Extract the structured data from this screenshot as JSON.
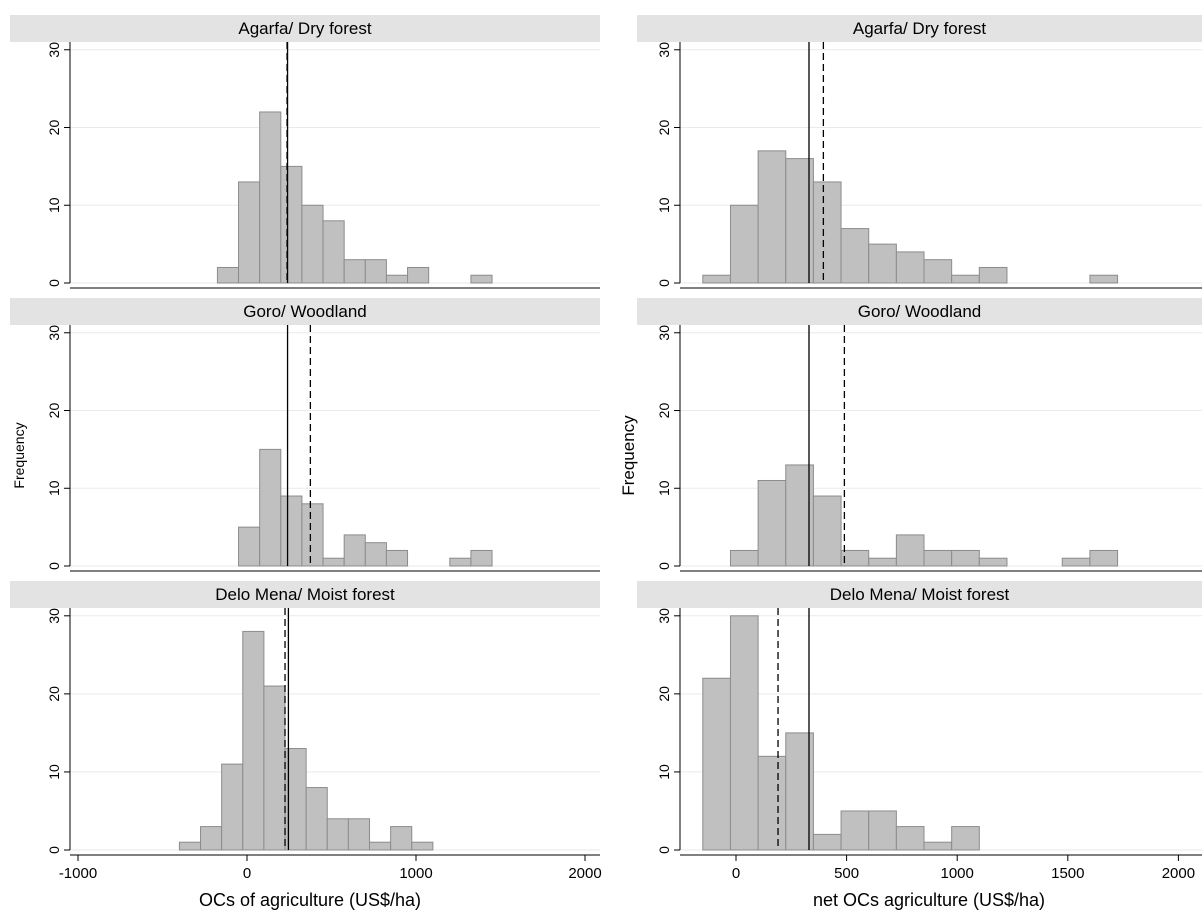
{
  "chart_data": [
    {
      "type": "bar",
      "panel": "Agarfa/ Dry forest",
      "xlabel": "",
      "ylabel": "",
      "yticks": [
        0,
        10,
        20,
        30
      ],
      "ylim": [
        0,
        31
      ],
      "xlim": [
        -1000,
        2000
      ],
      "bin_width": 125,
      "bins": [
        {
          "x0": -175,
          "x1": -50,
          "value": 2
        },
        {
          "x0": -50,
          "x1": 75,
          "value": 13
        },
        {
          "x0": 75,
          "x1": 200,
          "value": 22
        },
        {
          "x0": 200,
          "x1": 325,
          "value": 15
        },
        {
          "x0": 325,
          "x1": 450,
          "value": 10
        },
        {
          "x0": 450,
          "x1": 575,
          "value": 8
        },
        {
          "x0": 575,
          "x1": 700,
          "value": 3
        },
        {
          "x0": 700,
          "x1": 825,
          "value": 3
        },
        {
          "x0": 825,
          "x1": 950,
          "value": 1
        },
        {
          "x0": 950,
          "x1": 1075,
          "value": 2
        },
        {
          "x0": 1325,
          "x1": 1450,
          "value": 1
        }
      ],
      "mean_line": 237,
      "median_line": 240
    },
    {
      "type": "bar",
      "panel": "Agarfa/ Dry forest",
      "xlabel": "",
      "ylabel": "",
      "yticks": [
        0,
        10,
        20,
        30
      ],
      "ylim": [
        0,
        31
      ],
      "xlim": [
        -250,
        2000
      ],
      "bin_width": 125,
      "bins": [
        {
          "x0": -150,
          "x1": -25,
          "value": 1
        },
        {
          "x0": -25,
          "x1": 100,
          "value": 10
        },
        {
          "x0": 100,
          "x1": 225,
          "value": 17
        },
        {
          "x0": 225,
          "x1": 350,
          "value": 16
        },
        {
          "x0": 350,
          "x1": 475,
          "value": 13
        },
        {
          "x0": 475,
          "x1": 600,
          "value": 7
        },
        {
          "x0": 600,
          "x1": 725,
          "value": 5
        },
        {
          "x0": 725,
          "x1": 850,
          "value": 4
        },
        {
          "x0": 850,
          "x1": 975,
          "value": 3
        },
        {
          "x0": 975,
          "x1": 1100,
          "value": 1
        },
        {
          "x0": 1100,
          "x1": 1225,
          "value": 2
        },
        {
          "x0": 1600,
          "x1": 1725,
          "value": 1
        }
      ],
      "solid_line": 330,
      "dashed_line": 395
    },
    {
      "type": "bar",
      "panel": "Goro/ Woodland",
      "xlabel": "",
      "ylabel": "Frequency",
      "yticks": [
        0,
        10,
        20,
        30
      ],
      "ylim": [
        0,
        31
      ],
      "xlim": [
        -1000,
        2000
      ],
      "bin_width": 125,
      "bins": [
        {
          "x0": -50,
          "x1": 75,
          "value": 5
        },
        {
          "x0": 75,
          "x1": 200,
          "value": 15
        },
        {
          "x0": 200,
          "x1": 325,
          "value": 9
        },
        {
          "x0": 325,
          "x1": 450,
          "value": 8
        },
        {
          "x0": 450,
          "x1": 575,
          "value": 1
        },
        {
          "x0": 575,
          "x1": 700,
          "value": 4
        },
        {
          "x0": 700,
          "x1": 825,
          "value": 3
        },
        {
          "x0": 825,
          "x1": 950,
          "value": 2
        },
        {
          "x0": 1200,
          "x1": 1325,
          "value": 1
        },
        {
          "x0": 1325,
          "x1": 1450,
          "value": 2
        }
      ],
      "solid_line": 240,
      "dashed_line": 375
    },
    {
      "type": "bar",
      "panel": "Goro/ Woodland",
      "xlabel": "",
      "ylabel": "Frequency",
      "yticks": [
        0,
        10,
        20,
        30
      ],
      "ylim": [
        0,
        31
      ],
      "xlim": [
        -250,
        2000
      ],
      "bin_width": 125,
      "bins": [
        {
          "x0": -25,
          "x1": 100,
          "value": 2
        },
        {
          "x0": 100,
          "x1": 225,
          "value": 11
        },
        {
          "x0": 225,
          "x1": 350,
          "value": 13
        },
        {
          "x0": 350,
          "x1": 475,
          "value": 9
        },
        {
          "x0": 475,
          "x1": 600,
          "value": 2
        },
        {
          "x0": 600,
          "x1": 725,
          "value": 1
        },
        {
          "x0": 725,
          "x1": 850,
          "value": 4
        },
        {
          "x0": 850,
          "x1": 975,
          "value": 2
        },
        {
          "x0": 975,
          "x1": 1100,
          "value": 2
        },
        {
          "x0": 1100,
          "x1": 1225,
          "value": 1
        },
        {
          "x0": 1475,
          "x1": 1600,
          "value": 1
        },
        {
          "x0": 1600,
          "x1": 1725,
          "value": 2
        }
      ],
      "solid_line": 330,
      "dashed_line": 490
    },
    {
      "type": "bar",
      "panel": "Delo Mena/ Moist forest",
      "xlabel": "OCs of agriculture (US$/ha)",
      "ylabel": "",
      "yticks": [
        0,
        10,
        20,
        30
      ],
      "xticks": [
        -1000,
        0,
        1000,
        2000
      ],
      "ylim": [
        0,
        31
      ],
      "xlim": [
        -1000,
        2000
      ],
      "bin_width": 125,
      "bins": [
        {
          "x0": -400,
          "x1": -275,
          "value": 1
        },
        {
          "x0": -275,
          "x1": -150,
          "value": 3
        },
        {
          "x0": -150,
          "x1": -25,
          "value": 11
        },
        {
          "x0": -25,
          "x1": 100,
          "value": 28
        },
        {
          "x0": 100,
          "x1": 225,
          "value": 21
        },
        {
          "x0": 225,
          "x1": 350,
          "value": 13
        },
        {
          "x0": 350,
          "x1": 475,
          "value": 8
        },
        {
          "x0": 475,
          "x1": 600,
          "value": 4
        },
        {
          "x0": 600,
          "x1": 725,
          "value": 4
        },
        {
          "x0": 725,
          "x1": 850,
          "value": 1
        },
        {
          "x0": 850,
          "x1": 975,
          "value": 3
        },
        {
          "x0": 975,
          "x1": 1100,
          "value": 1
        }
      ],
      "dashed_line": 225,
      "solid_line": 245
    },
    {
      "type": "bar",
      "panel": "Delo Mena/ Moist forest",
      "xlabel": "net OCs agriculture (US$/ha)",
      "ylabel": "",
      "yticks": [
        0,
        10,
        20,
        30
      ],
      "xticks": [
        0,
        500,
        1000,
        1500,
        2000
      ],
      "ylim": [
        0,
        31
      ],
      "xlim": [
        -250,
        2000
      ],
      "bin_width": 125,
      "bins": [
        {
          "x0": -150,
          "x1": -25,
          "value": 22
        },
        {
          "x0": -25,
          "x1": 100,
          "value": 30
        },
        {
          "x0": 100,
          "x1": 225,
          "value": 12
        },
        {
          "x0": 225,
          "x1": 350,
          "value": 15
        },
        {
          "x0": 350,
          "x1": 475,
          "value": 2
        },
        {
          "x0": 475,
          "x1": 600,
          "value": 5
        },
        {
          "x0": 600,
          "x1": 725,
          "value": 5
        },
        {
          "x0": 725,
          "x1": 850,
          "value": 3
        },
        {
          "x0": 850,
          "x1": 975,
          "value": 1
        },
        {
          "x0": 975,
          "x1": 1100,
          "value": 3
        }
      ],
      "dashed_line": 190,
      "solid_line": 330
    }
  ],
  "style": {
    "bar_fill": "#c0c0c0",
    "bar_stroke": "#8c8c8c",
    "header_fill": "#e3e3e3",
    "axis_color": "#000000",
    "grid_color": "#eaeaea"
  }
}
